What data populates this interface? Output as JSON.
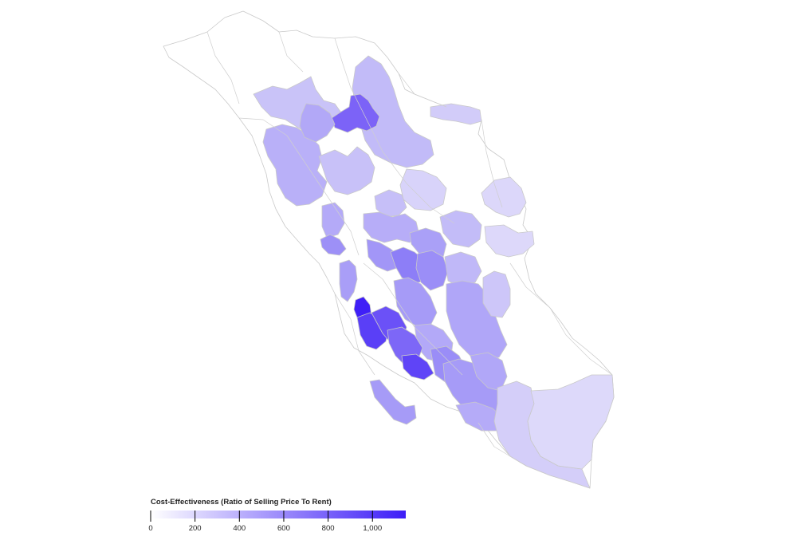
{
  "legend": {
    "title": "Cost-Effectiveness (Ratio of Selling Price To Rent)",
    "domain": [
      0,
      1150
    ],
    "color_low": "#ffffff",
    "color_high": "#3d1df7",
    "ticks": [
      {
        "value": 0,
        "label": "0"
      },
      {
        "value": 200,
        "label": "200"
      },
      {
        "value": 400,
        "label": "400"
      },
      {
        "value": 600,
        "label": "600"
      },
      {
        "value": 800,
        "label": "800"
      },
      {
        "value": 1000,
        "label": "1,000"
      }
    ]
  },
  "colors": {
    "boundary_stroke": "#c9c9c9",
    "no_data_fill": "#ffffff"
  }
}
